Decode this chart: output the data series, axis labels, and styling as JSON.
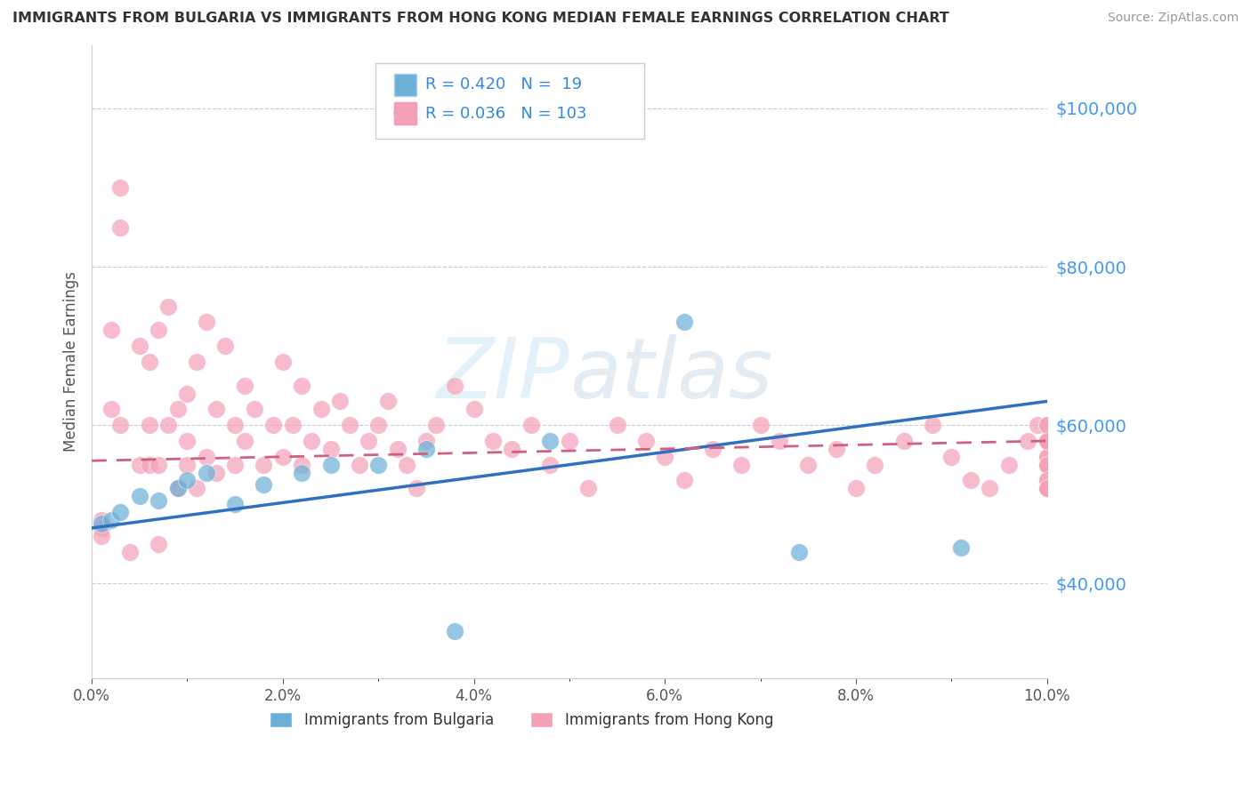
{
  "title": "IMMIGRANTS FROM BULGARIA VS IMMIGRANTS FROM HONG KONG MEDIAN FEMALE EARNINGS CORRELATION CHART",
  "source": "Source: ZipAtlas.com",
  "ylabel": "Median Female Earnings",
  "xlim": [
    0.0,
    0.1
  ],
  "ylim": [
    28000,
    108000
  ],
  "yticks": [
    40000,
    60000,
    80000,
    100000
  ],
  "ytick_labels": [
    "$40,000",
    "$60,000",
    "$80,000",
    "$100,000"
  ],
  "xtick_labels": [
    "0.0%",
    "",
    "2.0%",
    "",
    "4.0%",
    "",
    "6.0%",
    "",
    "8.0%",
    "",
    "10.0%"
  ],
  "xticks": [
    0.0,
    0.01,
    0.02,
    0.03,
    0.04,
    0.05,
    0.06,
    0.07,
    0.08,
    0.09,
    0.1
  ],
  "bulgaria_color": "#6baed6",
  "hong_kong_color": "#f4a0b5",
  "bulgaria_line_color": "#3070c0",
  "hk_line_color": "#d06080",
  "legend_label_bulgaria": "Immigrants from Bulgaria",
  "legend_label_hk": "Immigrants from Hong Kong",
  "watermark": "ZIPatlas",
  "bg_line_x0": 0.0,
  "bg_line_y0": 47000,
  "bg_line_x1": 0.1,
  "bg_line_y1": 63000,
  "hk_line_x0": 0.0,
  "hk_line_y0": 55500,
  "hk_line_x1": 0.1,
  "hk_line_y1": 58000,
  "bulgaria_x": [
    0.001,
    0.002,
    0.003,
    0.005,
    0.007,
    0.009,
    0.01,
    0.012,
    0.015,
    0.018,
    0.022,
    0.025,
    0.03,
    0.035,
    0.038,
    0.048,
    0.062,
    0.074,
    0.091
  ],
  "bulgaria_y": [
    47500,
    48000,
    49000,
    51000,
    50500,
    52000,
    53000,
    54000,
    50000,
    52500,
    54000,
    55000,
    55000,
    57000,
    34000,
    58000,
    73000,
    44000,
    44500
  ],
  "hk_x": [
    0.001,
    0.001,
    0.001,
    0.002,
    0.002,
    0.003,
    0.003,
    0.003,
    0.004,
    0.005,
    0.005,
    0.006,
    0.006,
    0.006,
    0.007,
    0.007,
    0.007,
    0.008,
    0.008,
    0.009,
    0.009,
    0.01,
    0.01,
    0.01,
    0.011,
    0.011,
    0.012,
    0.012,
    0.013,
    0.013,
    0.014,
    0.015,
    0.015,
    0.016,
    0.016,
    0.017,
    0.018,
    0.019,
    0.02,
    0.02,
    0.021,
    0.022,
    0.022,
    0.023,
    0.024,
    0.025,
    0.026,
    0.027,
    0.028,
    0.029,
    0.03,
    0.031,
    0.032,
    0.033,
    0.034,
    0.035,
    0.036,
    0.038,
    0.04,
    0.042,
    0.044,
    0.046,
    0.048,
    0.05,
    0.052,
    0.055,
    0.058,
    0.06,
    0.062,
    0.065,
    0.068,
    0.07,
    0.072,
    0.075,
    0.078,
    0.08,
    0.082,
    0.085,
    0.088,
    0.09,
    0.092,
    0.094,
    0.096,
    0.098,
    0.099,
    0.1,
    0.1,
    0.1,
    0.1,
    0.1,
    0.1,
    0.1,
    0.1,
    0.1,
    0.1,
    0.1,
    0.1,
    0.1,
    0.1,
    0.1,
    0.1,
    0.1,
    0.1
  ],
  "hk_y": [
    48000,
    47000,
    46000,
    72000,
    62000,
    90000,
    85000,
    60000,
    44000,
    55000,
    70000,
    68000,
    60000,
    55000,
    72000,
    55000,
    45000,
    75000,
    60000,
    52000,
    62000,
    64000,
    58000,
    55000,
    68000,
    52000,
    73000,
    56000,
    62000,
    54000,
    70000,
    60000,
    55000,
    65000,
    58000,
    62000,
    55000,
    60000,
    68000,
    56000,
    60000,
    65000,
    55000,
    58000,
    62000,
    57000,
    63000,
    60000,
    55000,
    58000,
    60000,
    63000,
    57000,
    55000,
    52000,
    58000,
    60000,
    65000,
    62000,
    58000,
    57000,
    60000,
    55000,
    58000,
    52000,
    60000,
    58000,
    56000,
    53000,
    57000,
    55000,
    60000,
    58000,
    55000,
    57000,
    52000,
    55000,
    58000,
    60000,
    56000,
    53000,
    52000,
    55000,
    58000,
    60000,
    56000,
    58000,
    52000,
    55000,
    58000,
    60000,
    55000,
    53000,
    52000,
    55000,
    58000,
    60000,
    56000,
    58000,
    52000,
    55000,
    53000,
    52000
  ]
}
